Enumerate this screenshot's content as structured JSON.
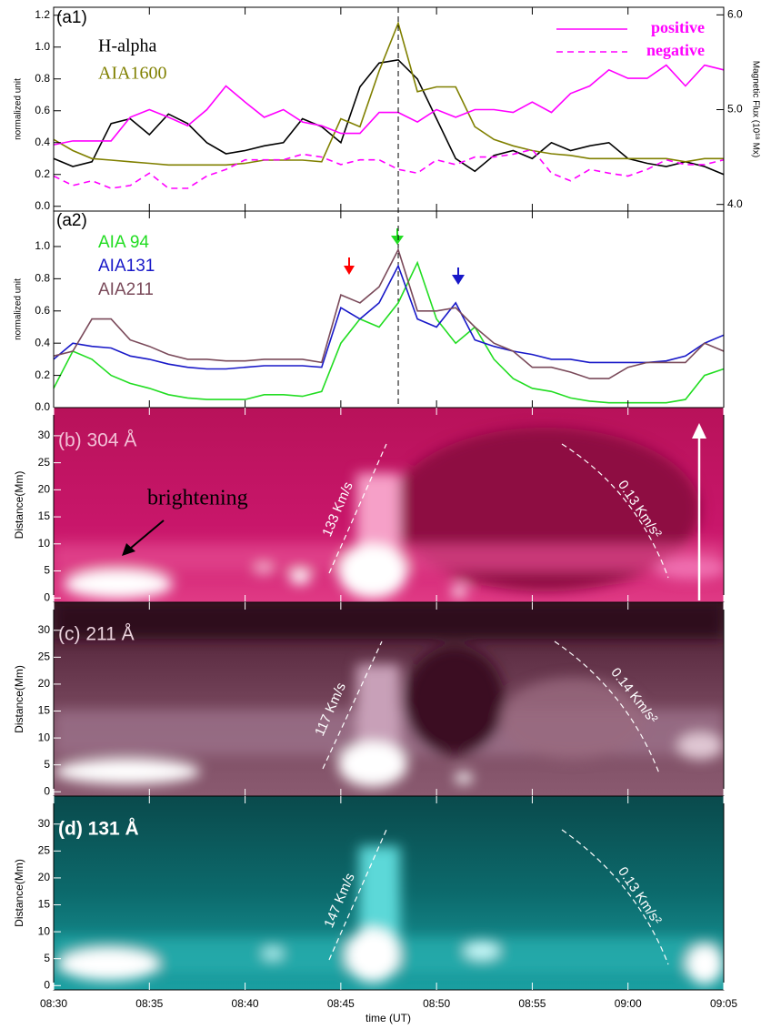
{
  "chart_data": [
    {
      "type": "line",
      "label": "(a1)",
      "ylabel": "normalized unit",
      "y2label": "Magnetic Flux (10¹⁸ Mx)",
      "x": [
        0,
        1,
        2,
        3,
        4,
        5,
        6,
        7,
        8,
        9,
        10,
        11,
        12,
        13,
        14,
        15,
        16,
        17,
        18,
        19,
        20,
        21,
        22,
        23,
        24,
        25,
        26,
        27,
        28,
        29,
        30,
        31,
        32,
        33,
        34,
        35
      ],
      "ylim": [
        -0.03,
        1.25
      ],
      "yticks": [
        {
          "value": 0,
          "label": "0.0"
        },
        {
          "value": 0.2,
          "label": "0.2"
        },
        {
          "value": 0.4,
          "label": "0.4"
        },
        {
          "value": 0.6,
          "label": "0.6"
        },
        {
          "value": 0.8,
          "label": "0.8"
        },
        {
          "value": 1.0,
          "label": "1.0"
        },
        {
          "value": 1.2,
          "label": "1.2"
        }
      ],
      "y2lim": [
        3.93,
        6.08
      ],
      "y2ticks": [
        {
          "value": 4,
          "label": "4.0"
        },
        {
          "value": 5,
          "label": "5.0"
        },
        {
          "value": 6,
          "label": "6.0"
        }
      ],
      "vline": 18,
      "series": [
        {
          "name": "H-alpha",
          "color": "#000000",
          "values": [
            0.3,
            0.25,
            0.28,
            0.52,
            0.55,
            0.45,
            0.58,
            0.52,
            0.4,
            0.33,
            0.35,
            0.38,
            0.4,
            0.55,
            0.5,
            0.4,
            0.75,
            0.9,
            0.92,
            0.8,
            0.55,
            0.3,
            0.22,
            0.32,
            0.35,
            0.3,
            0.4,
            0.35,
            0.38,
            0.4,
            0.3,
            0.27,
            0.25,
            0.28,
            0.25,
            0.2
          ]
        },
        {
          "name": "AIA1600",
          "color": "#808000",
          "values": [
            0.42,
            0.35,
            0.3,
            0.29,
            0.28,
            0.27,
            0.26,
            0.26,
            0.26,
            0.26,
            0.27,
            0.29,
            0.29,
            0.29,
            0.28,
            0.55,
            0.5,
            0.85,
            1.15,
            0.72,
            0.75,
            0.75,
            0.5,
            0.42,
            0.38,
            0.35,
            0.33,
            0.32,
            0.3,
            0.3,
            0.3,
            0.3,
            0.3,
            0.28,
            0.3,
            0.3
          ]
        },
        {
          "name": "positive",
          "color": "#ff00ff",
          "axis": "y2",
          "dash": false,
          "values": [
            4.63,
            4.67,
            4.67,
            4.67,
            4.92,
            5.0,
            4.92,
            4.83,
            5.0,
            5.25,
            5.08,
            4.92,
            5.0,
            4.87,
            4.83,
            4.75,
            4.75,
            4.97,
            4.97,
            4.87,
            5.0,
            4.92,
            5.0,
            5.0,
            4.97,
            5.08,
            4.97,
            5.17,
            5.25,
            5.42,
            5.33,
            5.33,
            5.47,
            5.25,
            5.47,
            5.42
          ]
        },
        {
          "name": "negative",
          "color": "#ff00ff",
          "axis": "y2",
          "dash": true,
          "values": [
            4.3,
            4.2,
            4.25,
            4.17,
            4.2,
            4.33,
            4.17,
            4.17,
            4.3,
            4.37,
            4.47,
            4.47,
            4.47,
            4.53,
            4.5,
            4.42,
            4.47,
            4.47,
            4.37,
            4.33,
            4.47,
            4.42,
            4.5,
            4.5,
            4.53,
            4.58,
            4.33,
            4.25,
            4.37,
            4.33,
            4.3,
            4.37,
            4.47,
            4.42,
            4.42,
            4.47
          ]
        }
      ]
    },
    {
      "type": "line",
      "label": "(a2)",
      "ylabel": "normalized unit",
      "x": [
        0,
        1,
        2,
        3,
        4,
        5,
        6,
        7,
        8,
        9,
        10,
        11,
        12,
        13,
        14,
        15,
        16,
        17,
        18,
        19,
        20,
        21,
        22,
        23,
        24,
        25,
        26,
        27,
        28,
        29,
        30,
        31,
        32,
        33,
        34,
        35
      ],
      "ylim": [
        0,
        1.22
      ],
      "yticks": [
        {
          "value": 0,
          "label": "0.0"
        },
        {
          "value": 0.2,
          "label": "0.2"
        },
        {
          "value": 0.4,
          "label": "0.4"
        },
        {
          "value": 0.6,
          "label": "0.6"
        },
        {
          "value": 0.8,
          "label": "0.8"
        },
        {
          "value": 1.0,
          "label": "1.0"
        }
      ],
      "series": [
        {
          "name": "AIA 94",
          "color": "#22dd22",
          "values": [
            0.12,
            0.35,
            0.3,
            0.2,
            0.15,
            0.12,
            0.08,
            0.06,
            0.05,
            0.05,
            0.05,
            0.08,
            0.08,
            0.07,
            0.1,
            0.4,
            0.55,
            0.5,
            0.65,
            0.9,
            0.55,
            0.4,
            0.5,
            0.3,
            0.18,
            0.12,
            0.1,
            0.06,
            0.04,
            0.03,
            0.03,
            0.03,
            0.03,
            0.05,
            0.2,
            0.24
          ]
        },
        {
          "name": "AIA131",
          "color": "#1818c8",
          "values": [
            0.3,
            0.4,
            0.38,
            0.37,
            0.32,
            0.3,
            0.27,
            0.25,
            0.24,
            0.24,
            0.25,
            0.26,
            0.26,
            0.26,
            0.25,
            0.62,
            0.55,
            0.65,
            0.88,
            0.55,
            0.5,
            0.65,
            0.42,
            0.38,
            0.35,
            0.33,
            0.3,
            0.3,
            0.28,
            0.28,
            0.28,
            0.28,
            0.29,
            0.32,
            0.4,
            0.45
          ]
        },
        {
          "name": "AIA211",
          "color": "#7a4a5a",
          "values": [
            0.32,
            0.35,
            0.55,
            0.55,
            0.42,
            0.38,
            0.33,
            0.3,
            0.3,
            0.29,
            0.29,
            0.3,
            0.3,
            0.3,
            0.28,
            0.7,
            0.65,
            0.75,
            0.98,
            0.6,
            0.6,
            0.62,
            0.5,
            0.4,
            0.35,
            0.25,
            0.25,
            0.22,
            0.18,
            0.18,
            0.25,
            0.28,
            0.28,
            0.28,
            0.4,
            0.35
          ]
        }
      ]
    },
    {
      "type": "image",
      "label": "(b) 304 Å",
      "ylabel": "Distance(Mm)",
      "ylim": [
        -0.8,
        35.2
      ],
      "yticks": [
        0,
        5,
        10,
        15,
        20,
        25,
        30
      ],
      "annotations": [
        "133 Km/s",
        "0.13 Km/s²",
        "brightening"
      ]
    },
    {
      "type": "image",
      "label": "(c) 211 Å",
      "ylabel": "Distance(Mm)",
      "ylim": [
        -0.8,
        35.2
      ],
      "yticks": [
        0,
        5,
        10,
        15,
        20,
        25,
        30
      ],
      "annotations": [
        "117 Km/s",
        "0.14 Km/s²"
      ]
    },
    {
      "type": "image",
      "label": "(d) 131 Å",
      "ylabel": "Distance(Mm)",
      "ylim": [
        -0.8,
        35.2
      ],
      "yticks": [
        0,
        5,
        10,
        15,
        20,
        25,
        30
      ],
      "annotations": [
        "147 Km/s",
        "0.13 Km/s²"
      ],
      "xlabel": "time (UT)",
      "xlim": [
        0,
        35
      ],
      "xticks": [
        {
          "value": 0,
          "label": "08:30"
        },
        {
          "value": 5,
          "label": "08:35"
        },
        {
          "value": 10,
          "label": "08:40"
        },
        {
          "value": 15,
          "label": "08:45"
        },
        {
          "value": 20,
          "label": "08:50"
        },
        {
          "value": 25,
          "label": "08:55"
        },
        {
          "value": 30,
          "label": "09:00"
        },
        {
          "value": 35,
          "label": "09:05"
        }
      ]
    }
  ]
}
